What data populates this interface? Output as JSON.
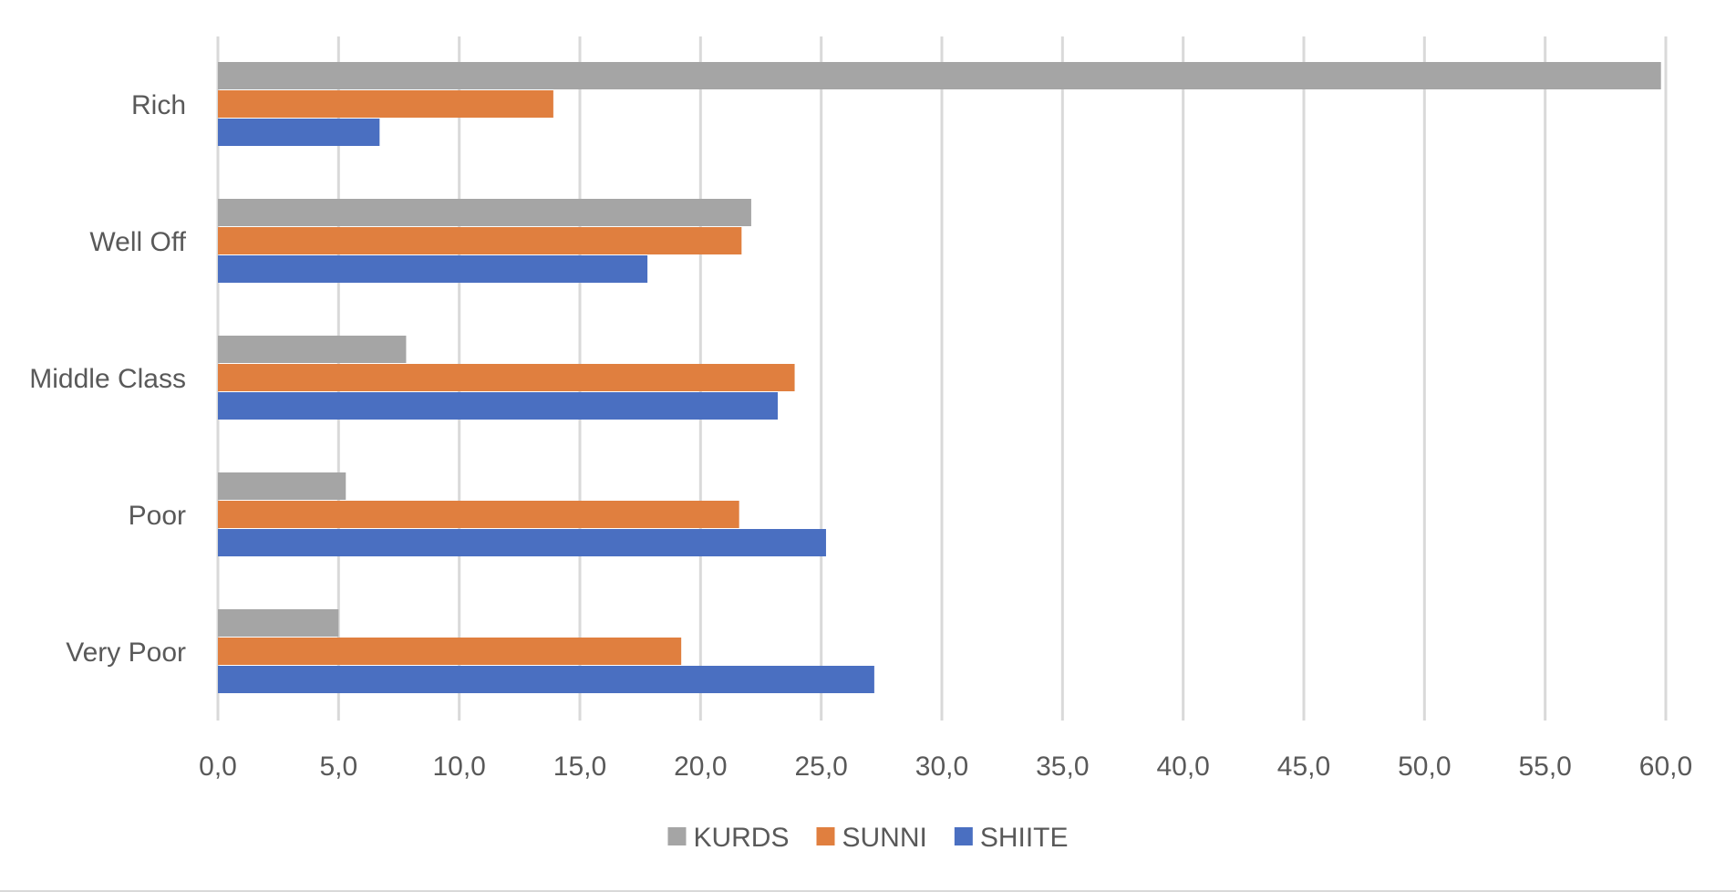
{
  "chart_data": {
    "type": "bar",
    "orientation": "horizontal",
    "categories": [
      "Rich",
      "Well Off",
      "Middle Class",
      "Poor",
      "Very Poor"
    ],
    "series": [
      {
        "name": "KURDS",
        "color": "#a5a5a5",
        "values": [
          59.8,
          22.1,
          7.8,
          5.3,
          5.0
        ]
      },
      {
        "name": "SUNNI",
        "color": "#e07f3f",
        "values": [
          13.9,
          21.7,
          23.9,
          21.6,
          19.2
        ]
      },
      {
        "name": "SHIITE",
        "color": "#4a6fc1",
        "values": [
          6.7,
          17.8,
          23.2,
          25.2,
          27.2
        ]
      }
    ],
    "xlim": [
      0,
      60
    ],
    "x_ticks": [
      "0,0",
      "5,0",
      "10,0",
      "15,0",
      "20,0",
      "25,0",
      "30,0",
      "35,0",
      "40,0",
      "45,0",
      "50,0",
      "55,0",
      "60,0"
    ],
    "grid": true,
    "legend_position": "bottom"
  }
}
